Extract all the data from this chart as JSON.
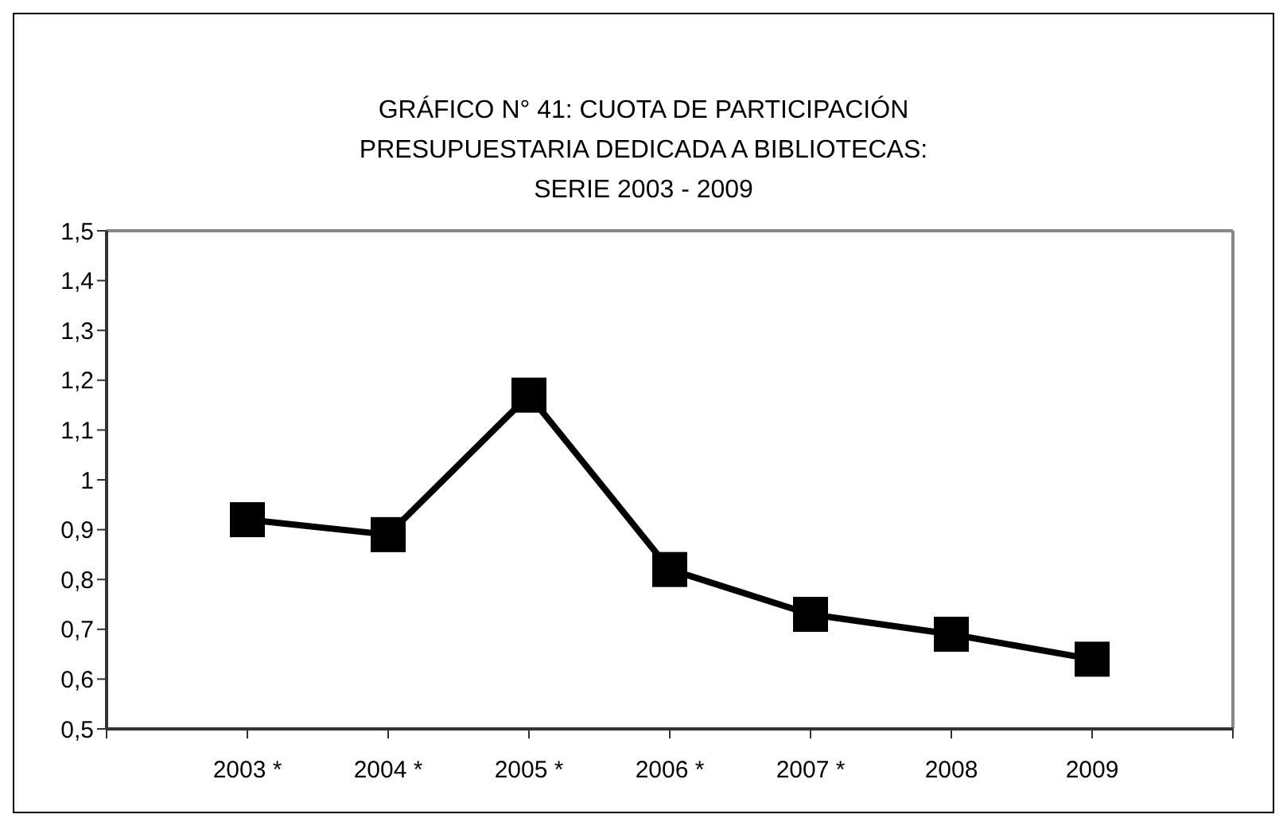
{
  "chart_data": {
    "type": "line",
    "title": "GRÁFICO N° 41: CUOTA DE PARTICIPACIÓN\nPRESUPUESTARIA DEDICADA A BIBLIOTECAS:\nSERIE 2003 - 2009",
    "categories": [
      "2003 *",
      "2004 *",
      "2005 *",
      "2006 *",
      "2007 *",
      "2008",
      "2009"
    ],
    "series": [
      {
        "color": "#000000",
        "values": [
          0.92,
          0.89,
          1.17,
          0.82,
          0.73,
          0.69,
          0.64
        ]
      }
    ],
    "ylim": [
      0.5,
      1.5
    ],
    "yticks": [
      {
        "value": 0.5,
        "label": "0,5"
      },
      {
        "value": 0.6,
        "label": "0,6"
      },
      {
        "value": 0.7,
        "label": "0,7"
      },
      {
        "value": 0.8,
        "label": "0,8"
      },
      {
        "value": 0.9,
        "label": "0,9"
      },
      {
        "value": 1,
        "label": "1"
      },
      {
        "value": 1.1,
        "label": "1,1"
      },
      {
        "value": 1.2,
        "label": "1,2"
      },
      {
        "value": 1.3,
        "label": "1,3"
      },
      {
        "value": 1.4,
        "label": "1,4"
      },
      {
        "value": 1.5,
        "label": "1,5"
      }
    ],
    "grid": false,
    "legend": false,
    "marker": "square",
    "line_style": "solid"
  }
}
